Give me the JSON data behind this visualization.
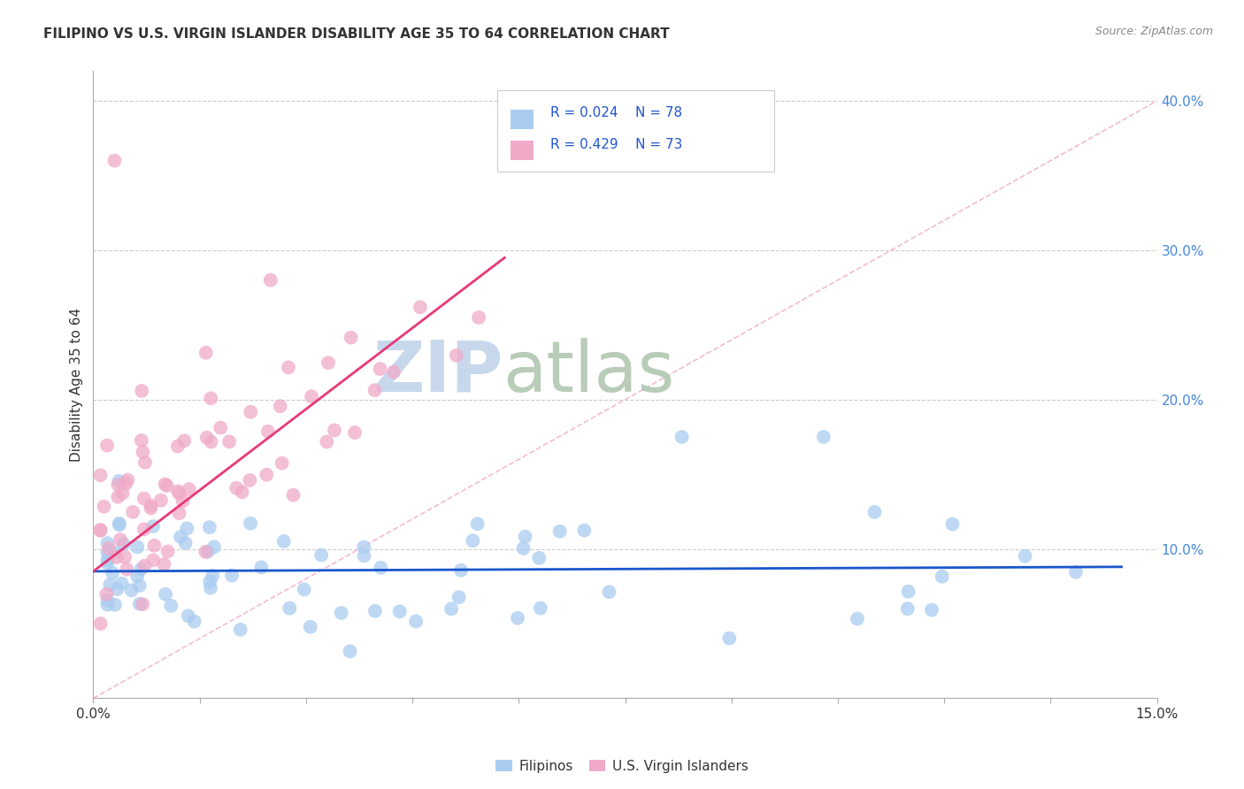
{
  "title": "FILIPINO VS U.S. VIRGIN ISLANDER DISABILITY AGE 35 TO 64 CORRELATION CHART",
  "source": "Source: ZipAtlas.com",
  "ylabel": "Disability Age 35 to 64",
  "x_min": 0.0,
  "x_max": 0.15,
  "y_min": 0.0,
  "y_max": 0.42,
  "legend_r1": "R = 0.024",
  "legend_n1": "N = 78",
  "legend_r2": "R = 0.429",
  "legend_n2": "N = 73",
  "color_filipino": "#aaccf0",
  "color_usvi": "#f0aac8",
  "line_color_filipino": "#1a56cc",
  "line_color_usvi": "#e83878",
  "diag_color": "#f0aac8",
  "watermark_zip_color": "#c8d8ec",
  "watermark_atlas_color": "#b8ccb8",
  "background_color": "#ffffff",
  "grid_color": "#cccccc",
  "right_ytick_color": "#4488dd",
  "right_yticks": [
    0.1,
    0.2,
    0.3,
    0.4
  ],
  "right_yticklabels": [
    "10.0%",
    "20.0%",
    "30.0%",
    "40.0%"
  ]
}
